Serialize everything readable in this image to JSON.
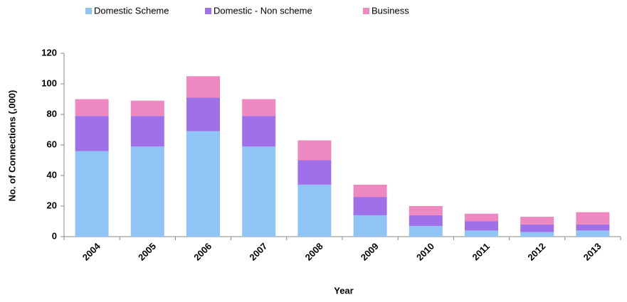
{
  "chart_data": {
    "type": "stacked-bar",
    "x_label": "Year",
    "y_label": "No. of Connections (,000)",
    "categories": [
      "2004",
      "2005",
      "2006",
      "2007",
      "2008",
      "2009",
      "2010",
      "2011",
      "2012",
      "2013"
    ],
    "series": [
      {
        "name": "Domestic Scheme",
        "color": "#8fc4f5",
        "values": [
          56,
          59,
          69,
          59,
          34,
          14,
          7,
          4,
          3,
          4
        ]
      },
      {
        "name": "Domestic - Non scheme",
        "color": "#a070e8",
        "values": [
          23,
          20,
          22,
          20,
          16,
          12,
          7,
          6,
          5,
          4
        ]
      },
      {
        "name": "Business",
        "color": "#ee88c0",
        "values": [
          11,
          10,
          14,
          11,
          13,
          8,
          6,
          5,
          5,
          8
        ]
      }
    ],
    "ylim": [
      0,
      120
    ],
    "yticks": [
      0,
      20,
      40,
      60,
      80,
      100,
      120
    ],
    "grid": false,
    "legend": "top"
  }
}
